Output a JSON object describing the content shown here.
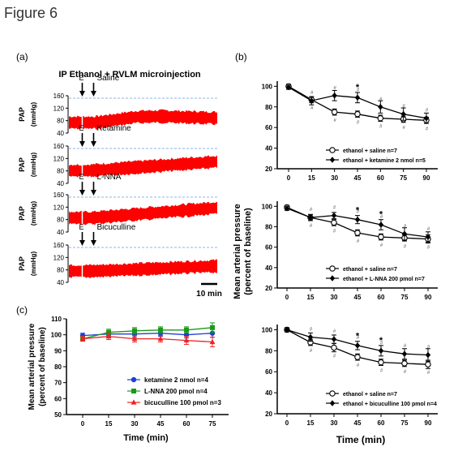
{
  "figure_title": "Figure 6",
  "panel_a": {
    "label": "(a)",
    "title": "IP Ethanol + RVLM microinjection",
    "marker_e": "E",
    "y_label_main": "PAP",
    "y_label_unit": "(mmHg)",
    "trace_color": "#ff0000",
    "baseline_color": "#8fb4e8",
    "scale_bar": "10 min",
    "traces": [
      {
        "name": "Saline",
        "ticks": [
          "160",
          "120",
          "80",
          "40"
        ]
      },
      {
        "name": "Ketamine",
        "ticks": [
          "160",
          "120",
          "80",
          "40"
        ]
      },
      {
        "name": "L-NNA",
        "ticks": [
          "160",
          "120",
          "80",
          "40"
        ]
      },
      {
        "name": "Bicuculline",
        "ticks": [
          "160",
          "120",
          "80",
          "40"
        ]
      }
    ]
  },
  "panel_b": {
    "label": "(b)",
    "ylabel_line1": "Mean arterial pressure",
    "ylabel_line2": "(percent of baseline)",
    "xlabel": "Time (min)"
  },
  "panel_c": {
    "label": "(c)",
    "ylabel_line1": "Mean arterial pressure",
    "ylabel_line2": "(percent of baseline)",
    "xlabel": "Time (min)"
  },
  "chart_data": [
    {
      "id": "b1",
      "type": "line",
      "x": [
        0,
        15,
        30,
        45,
        60,
        75,
        90
      ],
      "xticks": [
        "0",
        "15",
        "30",
        "45",
        "60",
        "75",
        "90"
      ],
      "ylim": [
        20,
        105
      ],
      "yticks": [
        20,
        40,
        60,
        80,
        100
      ],
      "series": [
        {
          "name": "ethanol + saline n=7",
          "marker": "open-circle",
          "values": [
            100,
            87,
            75,
            73,
            69,
            68,
            67
          ],
          "errors": [
            2,
            3,
            3,
            3,
            3,
            3,
            3
          ]
        },
        {
          "name": "ethanol + ketamine 2 nmol n=5",
          "marker": "filled-diamond",
          "values": [
            99,
            86,
            91,
            89,
            80,
            73,
            69
          ],
          "errors": [
            2,
            4,
            5,
            5,
            6,
            6,
            5
          ]
        }
      ],
      "annotations": [
        {
          "x": 45,
          "text": "*"
        }
      ]
    },
    {
      "id": "b2",
      "type": "line",
      "x": [
        0,
        15,
        30,
        45,
        60,
        75,
        90
      ],
      "xticks": [
        "0",
        "15",
        "30",
        "45",
        "60",
        "75",
        "90"
      ],
      "ylim": [
        20,
        105
      ],
      "yticks": [
        20,
        40,
        60,
        80,
        100
      ],
      "series": [
        {
          "name": "ethanol + saline n=7",
          "marker": "open-circle",
          "values": [
            99,
            89,
            84,
            74,
            70,
            69,
            68
          ],
          "errors": [
            2,
            3,
            3,
            3,
            3,
            3,
            4
          ]
        },
        {
          "name": "ethanol + L-NNA 200 pmol n=7",
          "marker": "filled-diamond",
          "values": [
            98,
            89,
            91,
            87,
            82,
            73,
            70
          ],
          "errors": [
            2,
            3,
            3,
            4,
            5,
            6,
            5
          ]
        }
      ],
      "annotations": [
        {
          "x": 45,
          "text": "*"
        },
        {
          "x": 60,
          "text": "*"
        }
      ]
    },
    {
      "id": "b3",
      "type": "line",
      "x": [
        0,
        15,
        30,
        45,
        60,
        75,
        90
      ],
      "xticks": [
        "0",
        "15",
        "30",
        "45",
        "60",
        "75",
        "90"
      ],
      "ylim": [
        20,
        105
      ],
      "yticks": [
        20,
        40,
        60,
        80,
        100
      ],
      "series": [
        {
          "name": "ethanol + saline n=7",
          "marker": "open-circle",
          "values": [
            100,
            88,
            83,
            74,
            69,
            68,
            67
          ],
          "errors": [
            2,
            3,
            4,
            3,
            3,
            3,
            4
          ]
        },
        {
          "name": "ethanol + bicuculline 100 pmol n=4",
          "marker": "filled-diamond",
          "values": [
            100,
            93,
            91,
            85,
            80,
            77,
            76
          ],
          "errors": [
            2,
            4,
            4,
            4,
            5,
            5,
            6
          ]
        }
      ],
      "annotations": [
        {
          "x": 45,
          "text": "*"
        },
        {
          "x": 60,
          "text": "*"
        }
      ]
    },
    {
      "id": "c",
      "type": "line",
      "x": [
        0,
        15,
        30,
        45,
        60,
        75
      ],
      "xticks": [
        "0",
        "15",
        "30",
        "45",
        "60",
        "75"
      ],
      "ylim": [
        50,
        110
      ],
      "yticks": [
        50,
        60,
        70,
        80,
        90,
        100,
        110
      ],
      "series": [
        {
          "name": "ketamine 2 nmol n=4",
          "color": "#1f3fd6",
          "marker": "circle",
          "values": [
            99.5,
            100.5,
            100.5,
            101,
            100,
            101
          ],
          "errors": [
            1.5,
            2,
            2,
            2,
            2,
            2.5
          ]
        },
        {
          "name": "L-NNA 200 pmol n=4",
          "color": "#1a9a1a",
          "marker": "square",
          "values": [
            97.5,
            101.5,
            102.5,
            103,
            103,
            104.5
          ],
          "errors": [
            1.5,
            2,
            2,
            2,
            2,
            3
          ]
        },
        {
          "name": "bicuculline 100 pmol n=3",
          "color": "#ee2222",
          "marker": "triangle",
          "values": [
            97.5,
            99,
            97.5,
            97.5,
            96.5,
            95.5
          ],
          "errors": [
            1.5,
            2,
            2,
            2,
            2.5,
            3
          ]
        }
      ]
    }
  ]
}
